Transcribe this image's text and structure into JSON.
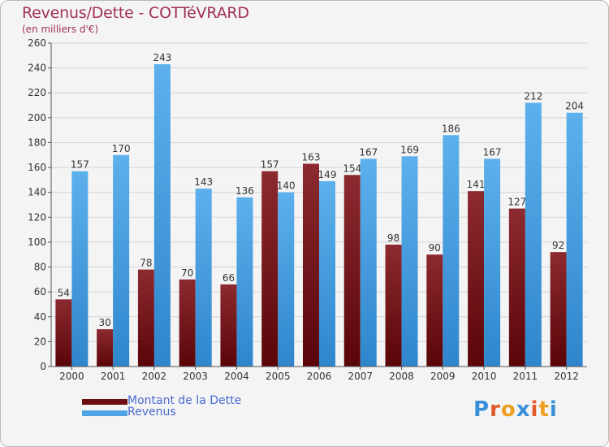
{
  "header": {
    "title": "Revenus/Dette - COTTéVRARD",
    "subtitle": "(en milliers d'€)"
  },
  "colors": {
    "dette": "#7a1418",
    "revenus": "#4ea3e3",
    "title": "#a0305a",
    "legend_text": "#4a6ad0"
  },
  "legend": [
    {
      "label": "Montant de la Dette",
      "color": "#6e0e12"
    },
    {
      "label": "Revenus",
      "color": "#4ea3e3"
    }
  ],
  "logo": {
    "text": "Proxiti",
    "letter_colors": [
      "#3a8fd8",
      "#e05a2a",
      "#f0a020",
      "#3a8fd8",
      "#e05a2a",
      "#f0a020",
      "#3a8fd8"
    ]
  },
  "chart_data": {
    "type": "bar",
    "categories": [
      "2000",
      "2001",
      "2002",
      "2003",
      "2004",
      "2005",
      "2006",
      "2007",
      "2008",
      "2009",
      "2010",
      "2011",
      "2012"
    ],
    "series": [
      {
        "name": "Montant de la Dette",
        "values": [
          54,
          30,
          78,
          70,
          66,
          157,
          163,
          154,
          98,
          90,
          141,
          127,
          92
        ]
      },
      {
        "name": "Revenus",
        "values": [
          157,
          170,
          243,
          143,
          136,
          140,
          149,
          167,
          169,
          186,
          167,
          212,
          204
        ]
      }
    ],
    "title": "Revenus/Dette - COTTéVRARD",
    "ylabel": "(en milliers d'€)",
    "ylim": [
      0,
      260
    ],
    "yticks": [
      0,
      20,
      40,
      60,
      80,
      100,
      120,
      140,
      160,
      180,
      200,
      220,
      240,
      260
    ],
    "grid": true,
    "legend_position": "bottom-left"
  }
}
